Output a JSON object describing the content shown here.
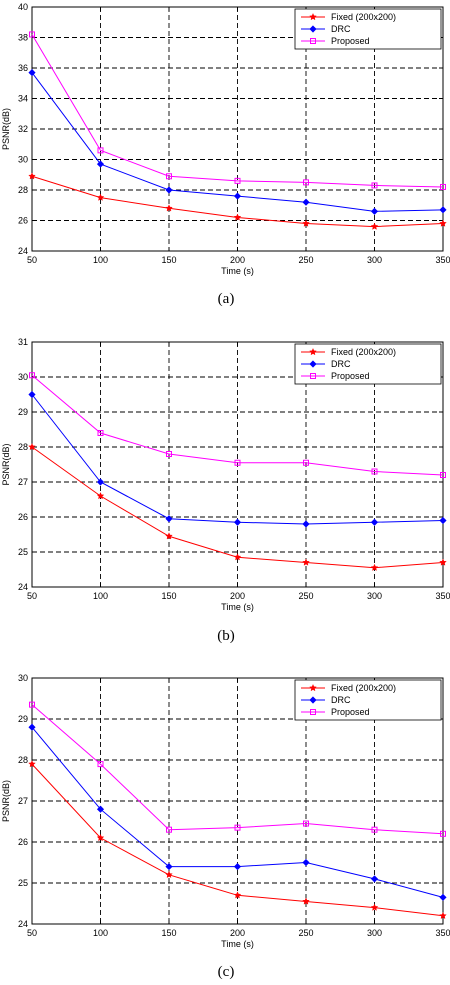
{
  "chart_data": [
    {
      "type": "line",
      "caption": "(a)",
      "xlabel": "Time (s)",
      "ylabel": "PSNR(dB)",
      "x": [
        50,
        100,
        150,
        200,
        250,
        300,
        350
      ],
      "xlim": [
        50,
        350
      ],
      "ylim": [
        24,
        40
      ],
      "xticks": [
        50,
        100,
        150,
        200,
        250,
        300,
        350
      ],
      "yticks": [
        24,
        26,
        28,
        30,
        32,
        34,
        36,
        38,
        40
      ],
      "grid": true,
      "legend_position": "top-right",
      "series": [
        {
          "name": "Fixed (200x200)",
          "color": "#ff0000",
          "marker": "star",
          "values": [
            28.9,
            27.5,
            26.8,
            26.2,
            25.8,
            25.6,
            25.8
          ]
        },
        {
          "name": "DRC",
          "color": "#0000ff",
          "marker": "diamond",
          "values": [
            35.7,
            29.7,
            28.0,
            27.6,
            27.2,
            26.6,
            26.7
          ]
        },
        {
          "name": "Proposed",
          "color": "#ff00ff",
          "marker": "square",
          "values": [
            38.2,
            30.6,
            28.9,
            28.6,
            28.5,
            28.3,
            28.2
          ]
        }
      ]
    },
    {
      "type": "line",
      "caption": "(b)",
      "xlabel": "Time (s)",
      "ylabel": "PSNR(dB)",
      "x": [
        50,
        100,
        150,
        200,
        250,
        300,
        350
      ],
      "xlim": [
        50,
        350
      ],
      "ylim": [
        24,
        31
      ],
      "xticks": [
        50,
        100,
        150,
        200,
        250,
        300,
        350
      ],
      "yticks": [
        24,
        25,
        26,
        27,
        28,
        29,
        30,
        31
      ],
      "grid": true,
      "legend_position": "top-right",
      "series": [
        {
          "name": "Fixed (200x200)",
          "color": "#ff0000",
          "marker": "star",
          "values": [
            28.0,
            26.6,
            25.45,
            24.85,
            24.7,
            24.55,
            24.7
          ]
        },
        {
          "name": "DRC",
          "color": "#0000ff",
          "marker": "diamond",
          "values": [
            29.5,
            27.0,
            25.95,
            25.85,
            25.8,
            25.85,
            25.9
          ]
        },
        {
          "name": "Proposed",
          "color": "#ff00ff",
          "marker": "square",
          "values": [
            30.05,
            28.4,
            27.8,
            27.55,
            27.55,
            27.3,
            27.2
          ]
        }
      ]
    },
    {
      "type": "line",
      "caption": "(c)",
      "xlabel": "Time (s)",
      "ylabel": "PSNR(dB)",
      "x": [
        50,
        100,
        150,
        200,
        250,
        300,
        350
      ],
      "xlim": [
        50,
        350
      ],
      "ylim": [
        24,
        30
      ],
      "xticks": [
        50,
        100,
        150,
        200,
        250,
        300,
        350
      ],
      "yticks": [
        24,
        25,
        26,
        27,
        28,
        29,
        30
      ],
      "grid": true,
      "legend_position": "top-right",
      "series": [
        {
          "name": "Fixed (200x200)",
          "color": "#ff0000",
          "marker": "star",
          "values": [
            27.9,
            26.1,
            25.2,
            24.7,
            24.55,
            24.4,
            24.2
          ]
        },
        {
          "name": "DRC",
          "color": "#0000ff",
          "marker": "diamond",
          "values": [
            28.8,
            26.8,
            25.4,
            25.4,
            25.5,
            25.1,
            24.65
          ]
        },
        {
          "name": "Proposed",
          "color": "#ff00ff",
          "marker": "square",
          "values": [
            29.35,
            27.9,
            26.3,
            26.35,
            26.45,
            26.3,
            26.2
          ]
        }
      ]
    }
  ]
}
